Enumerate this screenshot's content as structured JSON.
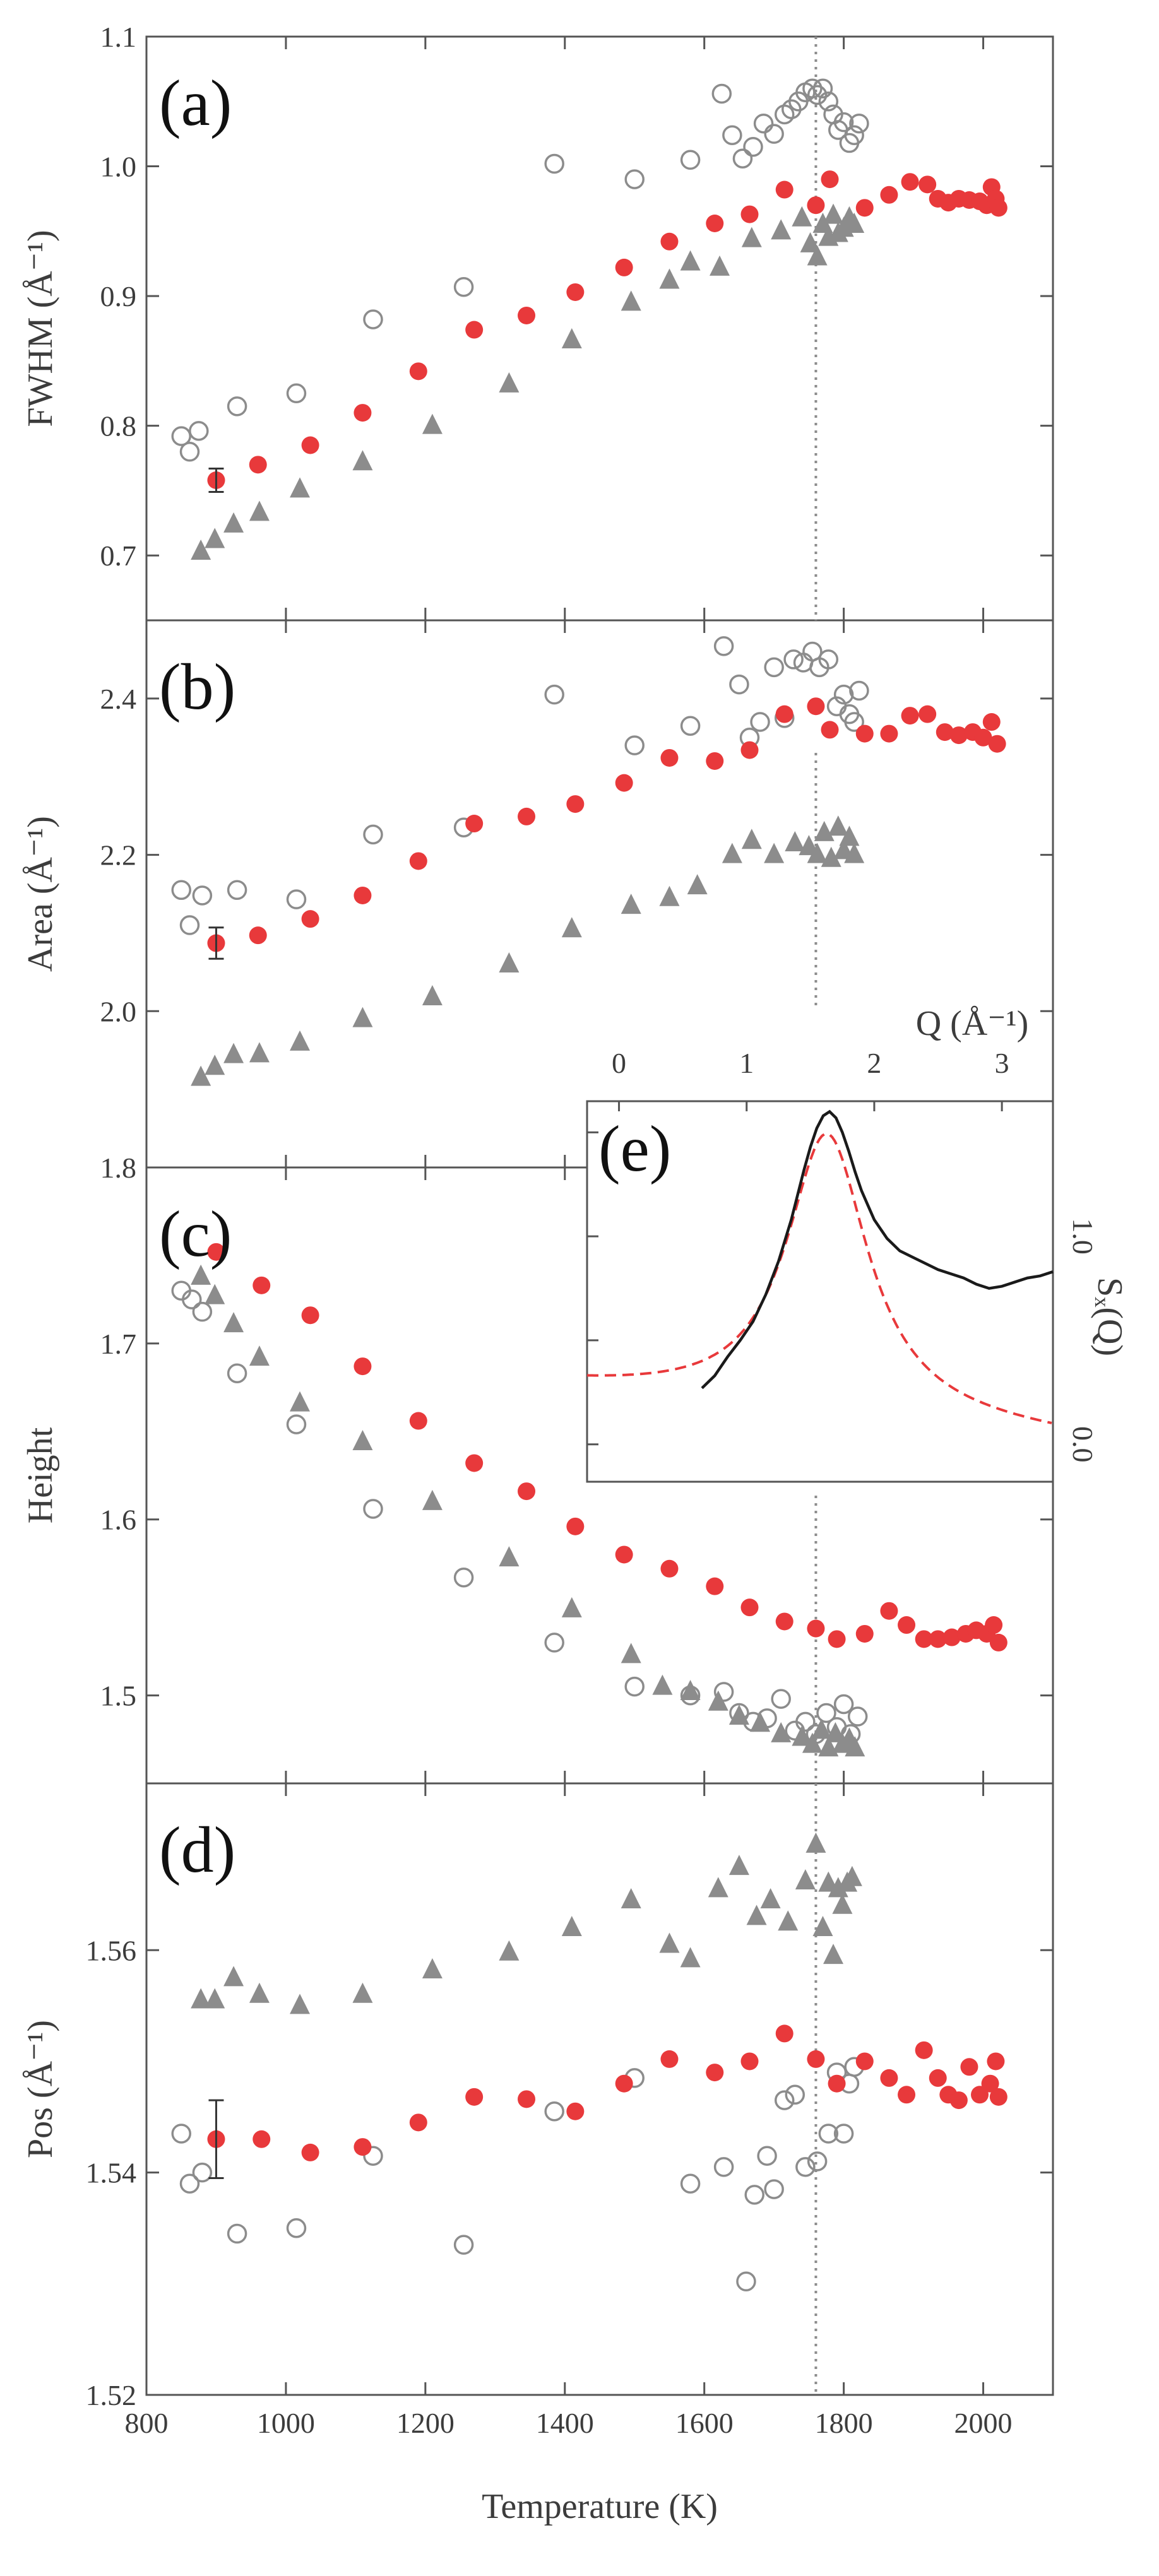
{
  "colors": {
    "red": "#e8393b",
    "gray": "#8c8c8c",
    "frame": "#555555",
    "refline": "#8c8c8c",
    "inset_black": "#1a1a1a"
  },
  "chart_data": [
    {
      "id": "a",
      "type": "scatter",
      "panel_label": "(a)",
      "ylabel": "FWHM (Å⁻¹)",
      "ylim": [
        0.65,
        1.1
      ],
      "xlim": [
        800,
        2100
      ],
      "yticks": [
        "0.7",
        "0.8",
        "0.9",
        "1.0",
        "1.1"
      ],
      "ytick_values": [
        0.7,
        0.8,
        0.9,
        1.0,
        1.1
      ],
      "series": [
        {
          "name": "open circles",
          "marker": "open-circle",
          "x": [
            850,
            862,
            875,
            930,
            1015,
            1125,
            1255,
            1385,
            1500,
            1580,
            1625,
            1640,
            1655,
            1670,
            1685,
            1700,
            1715,
            1725,
            1735,
            1745,
            1755,
            1762,
            1770,
            1778,
            1785,
            1792,
            1800,
            1808,
            1815,
            1822
          ],
          "y": [
            0.792,
            0.78,
            0.796,
            0.815,
            0.825,
            0.882,
            0.907,
            1.002,
            0.99,
            1.005,
            1.056,
            1.024,
            1.006,
            1.015,
            1.033,
            1.025,
            1.04,
            1.044,
            1.05,
            1.057,
            1.06,
            1.055,
            1.06,
            1.05,
            1.04,
            1.028,
            1.034,
            1.018,
            1.024,
            1.033
          ]
        },
        {
          "name": "red filled circles",
          "marker": "filled-circle",
          "x": [
            900,
            960,
            1035,
            1110,
            1190,
            1270,
            1345,
            1415,
            1485,
            1550,
            1615,
            1665,
            1715,
            1760,
            1780,
            1830,
            1865,
            1895,
            1920,
            1935,
            1950,
            1965,
            1980,
            1995,
            2005,
            2012,
            2018,
            2022
          ],
          "y": [
            0.758,
            0.77,
            0.785,
            0.81,
            0.842,
            0.874,
            0.885,
            0.903,
            0.922,
            0.942,
            0.956,
            0.963,
            0.982,
            0.97,
            0.99,
            0.968,
            0.978,
            0.988,
            0.986,
            0.975,
            0.972,
            0.975,
            0.974,
            0.973,
            0.97,
            0.984,
            0.975,
            0.968
          ],
          "error_bar": {
            "x": 900,
            "y": 0.758,
            "err": 0.009
          }
        },
        {
          "name": "gray triangles",
          "marker": "filled-triangle",
          "x": [
            878,
            898,
            925,
            962,
            1020,
            1110,
            1210,
            1320,
            1410,
            1495,
            1550,
            1580,
            1622,
            1668,
            1710,
            1740,
            1752,
            1762,
            1770,
            1778,
            1785,
            1792,
            1800,
            1808,
            1815
          ],
          "y": [
            0.703,
            0.712,
            0.724,
            0.733,
            0.751,
            0.772,
            0.8,
            0.832,
            0.866,
            0.895,
            0.912,
            0.926,
            0.922,
            0.944,
            0.95,
            0.96,
            0.94,
            0.93,
            0.955,
            0.945,
            0.962,
            0.948,
            0.952,
            0.96,
            0.955
          ]
        }
      ]
    },
    {
      "id": "b",
      "type": "scatter",
      "panel_label": "(b)",
      "ylabel": "Area (Å⁻¹)",
      "ylim": [
        1.8,
        2.5
      ],
      "xlim": [
        800,
        2100
      ],
      "yticks": [
        "1.8",
        "2.0",
        "2.2",
        "2.4"
      ],
      "ytick_values": [
        1.8,
        2.0,
        2.2,
        2.4
      ],
      "series": [
        {
          "name": "open circles",
          "marker": "open-circle",
          "x": [
            850,
            862,
            880,
            930,
            1015,
            1125,
            1255,
            1385,
            1500,
            1580,
            1628,
            1650,
            1665,
            1680,
            1700,
            1715,
            1728,
            1742,
            1755,
            1765,
            1778,
            1790,
            1800,
            1808,
            1815,
            1822
          ],
          "y": [
            2.155,
            2.11,
            2.148,
            2.155,
            2.143,
            2.226,
            2.235,
            2.405,
            2.34,
            2.365,
            2.467,
            2.418,
            2.35,
            2.37,
            2.44,
            2.375,
            2.45,
            2.446,
            2.46,
            2.44,
            2.45,
            2.39,
            2.405,
            2.38,
            2.37,
            2.41
          ]
        },
        {
          "name": "red filled circles",
          "marker": "filled-circle",
          "x": [
            900,
            960,
            1035,
            1110,
            1190,
            1270,
            1345,
            1415,
            1485,
            1550,
            1615,
            1665,
            1715,
            1760,
            1780,
            1830,
            1865,
            1895,
            1920,
            1945,
            1965,
            1985,
            2000,
            2012,
            2020
          ],
          "y": [
            2.087,
            2.097,
            2.118,
            2.148,
            2.192,
            2.24,
            2.249,
            2.265,
            2.292,
            2.324,
            2.32,
            2.334,
            2.38,
            2.39,
            2.36,
            2.355,
            2.355,
            2.378,
            2.38,
            2.357,
            2.353,
            2.357,
            2.35,
            2.37,
            2.342
          ],
          "error_bar": {
            "x": 900,
            "y": 2.087,
            "err": 0.02
          }
        },
        {
          "name": "gray triangles",
          "marker": "filled-triangle",
          "x": [
            878,
            898,
            925,
            962,
            1020,
            1110,
            1210,
            1320,
            1410,
            1495,
            1550,
            1590,
            1640,
            1668,
            1700,
            1730,
            1750,
            1762,
            1772,
            1782,
            1792,
            1800,
            1808,
            1815
          ],
          "y": [
            1.915,
            1.929,
            1.944,
            1.945,
            1.96,
            1.99,
            2.018,
            2.06,
            2.105,
            2.135,
            2.145,
            2.16,
            2.2,
            2.218,
            2.2,
            2.215,
            2.21,
            2.2,
            2.228,
            2.195,
            2.235,
            2.205,
            2.222,
            2.2
          ]
        }
      ]
    },
    {
      "id": "c",
      "type": "scatter",
      "panel_label": "(c)",
      "ylabel": "Height",
      "ylim": [
        1.45,
        1.8
      ],
      "xlim": [
        800,
        2100
      ],
      "yticks": [
        "1.5",
        "1.6",
        "1.7"
      ],
      "ytick_values": [
        1.5,
        1.6,
        1.7
      ],
      "series": [
        {
          "name": "open circles",
          "marker": "open-circle",
          "x": [
            850,
            865,
            880,
            930,
            1015,
            1125,
            1255,
            1385,
            1500,
            1580,
            1628,
            1650,
            1670,
            1690,
            1710,
            1730,
            1745,
            1760,
            1775,
            1790,
            1800,
            1810,
            1820
          ],
          "y": [
            1.73,
            1.725,
            1.718,
            1.683,
            1.654,
            1.606,
            1.567,
            1.53,
            1.505,
            1.5,
            1.502,
            1.49,
            1.485,
            1.487,
            1.498,
            1.48,
            1.485,
            1.478,
            1.49,
            1.482,
            1.495,
            1.478,
            1.488
          ]
        },
        {
          "name": "red filled circles",
          "marker": "filled-circle",
          "x": [
            900,
            965,
            1035,
            1110,
            1190,
            1270,
            1345,
            1415,
            1485,
            1550,
            1615,
            1665,
            1715,
            1760,
            1790,
            1830,
            1865,
            1890,
            1915,
            1935,
            1955,
            1975,
            1990,
            2005,
            2015,
            2022
          ],
          "y": [
            1.752,
            1.733,
            1.716,
            1.687,
            1.656,
            1.632,
            1.616,
            1.596,
            1.58,
            1.572,
            1.562,
            1.55,
            1.542,
            1.538,
            1.532,
            1.535,
            1.548,
            1.54,
            1.532,
            1.532,
            1.533,
            1.535,
            1.537,
            1.535,
            1.54,
            1.53
          ]
        },
        {
          "name": "gray triangles",
          "marker": "filled-triangle",
          "x": [
            878,
            898,
            925,
            962,
            1020,
            1110,
            1210,
            1320,
            1410,
            1495,
            1540,
            1580,
            1620,
            1650,
            1680,
            1710,
            1740,
            1755,
            1768,
            1778,
            1788,
            1798,
            1808,
            1816
          ],
          "y": [
            1.738,
            1.727,
            1.711,
            1.692,
            1.666,
            1.644,
            1.61,
            1.578,
            1.549,
            1.523,
            1.505,
            1.502,
            1.496,
            1.488,
            1.484,
            1.478,
            1.476,
            1.472,
            1.48,
            1.47,
            1.478,
            1.472,
            1.475,
            1.47
          ]
        }
      ]
    },
    {
      "id": "d",
      "type": "scatter",
      "panel_label": "(d)",
      "ylabel": "Pos (Å⁻¹)",
      "ylim": [
        1.52,
        1.575
      ],
      "xlim": [
        800,
        2100
      ],
      "yticks": [
        "1.52",
        "1.54",
        "1.56"
      ],
      "ytick_values": [
        1.52,
        1.54,
        1.56
      ],
      "xticks": [
        "800",
        "1000",
        "1200",
        "1400",
        "1600",
        "1800",
        "2000"
      ],
      "xtick_values": [
        800,
        1000,
        1200,
        1400,
        1600,
        1800,
        2000
      ],
      "xlabel": "Temperature (K)",
      "series": [
        {
          "name": "open circles",
          "marker": "open-circle",
          "x": [
            850,
            862,
            880,
            930,
            1015,
            1125,
            1255,
            1385,
            1500,
            1580,
            1628,
            1660,
            1672,
            1690,
            1700,
            1715,
            1730,
            1745,
            1762,
            1778,
            1790,
            1800,
            1808,
            1815
          ],
          "y": [
            1.5435,
            1.539,
            1.54,
            1.5345,
            1.535,
            1.5415,
            1.5335,
            1.5455,
            1.5485,
            1.539,
            1.5405,
            1.5302,
            1.538,
            1.5415,
            1.5385,
            1.5465,
            1.547,
            1.5405,
            1.541,
            1.5435,
            1.549,
            1.5435,
            1.548,
            1.5495
          ]
        },
        {
          "name": "red filled circles",
          "marker": "filled-circle",
          "x": [
            900,
            965,
            1035,
            1110,
            1190,
            1270,
            1345,
            1415,
            1485,
            1550,
            1615,
            1665,
            1715,
            1760,
            1790,
            1830,
            1865,
            1890,
            1915,
            1935,
            1950,
            1965,
            1980,
            1995,
            2010,
            2018,
            2022
          ],
          "y": [
            1.543,
            1.543,
            1.5418,
            1.5423,
            1.5445,
            1.5468,
            1.5466,
            1.5455,
            1.548,
            1.5502,
            1.549,
            1.55,
            1.5525,
            1.5502,
            1.548,
            1.55,
            1.5485,
            1.547,
            1.551,
            1.5485,
            1.547,
            1.5465,
            1.5495,
            1.547,
            1.548,
            1.55,
            1.5468
          ],
          "error_bar": {
            "x": 900,
            "y": 1.543,
            "err": 0.0035
          }
        },
        {
          "name": "gray triangles",
          "marker": "filled-triangle",
          "x": [
            878,
            898,
            925,
            962,
            1020,
            1110,
            1210,
            1320,
            1410,
            1495,
            1550,
            1580,
            1620,
            1650,
            1675,
            1695,
            1720,
            1745,
            1760,
            1770,
            1778,
            1785,
            1792,
            1798,
            1805,
            1812
          ],
          "y": [
            1.5555,
            1.5555,
            1.5575,
            1.556,
            1.555,
            1.556,
            1.5582,
            1.5598,
            1.562,
            1.5645,
            1.5605,
            1.5592,
            1.5655,
            1.5675,
            1.563,
            1.5645,
            1.5625,
            1.5662,
            1.5695,
            1.562,
            1.566,
            1.5595,
            1.5655,
            1.564,
            1.566,
            1.5665
          ]
        }
      ]
    },
    {
      "id": "e",
      "type": "line",
      "panel_label": "(e)",
      "xlabel": "Q (Å⁻¹)",
      "ylabel": "Sₓ(Q)",
      "xlim": [
        -0.25,
        3.4
      ],
      "ylim": [
        -0.18,
        1.65
      ],
      "xticks": [
        "0",
        "1",
        "2",
        "3"
      ],
      "xtick_values": [
        0,
        1,
        2,
        3
      ],
      "yticks": [
        "0.0",
        "1.0"
      ],
      "ytick_values": [
        0.0,
        1.0
      ],
      "minor_yticks": [
        0.0,
        0.5,
        1.0,
        1.5
      ],
      "series": [
        {
          "name": "measured",
          "style": "solid",
          "color": "black",
          "x": [
            0.65,
            0.75,
            0.85,
            0.95,
            1.05,
            1.15,
            1.25,
            1.35,
            1.45,
            1.5,
            1.55,
            1.6,
            1.65,
            1.7,
            1.75,
            1.8,
            1.85,
            1.9,
            1.95,
            2.0,
            2.1,
            2.2,
            2.3,
            2.4,
            2.5,
            2.6,
            2.7,
            2.8,
            2.9,
            3.0,
            3.1,
            3.2,
            3.3,
            3.4
          ],
          "y": [
            0.27,
            0.33,
            0.42,
            0.5,
            0.59,
            0.72,
            0.88,
            1.08,
            1.32,
            1.43,
            1.52,
            1.58,
            1.6,
            1.57,
            1.5,
            1.41,
            1.31,
            1.22,
            1.15,
            1.08,
            0.99,
            0.93,
            0.9,
            0.87,
            0.84,
            0.82,
            0.8,
            0.77,
            0.75,
            0.76,
            0.78,
            0.8,
            0.81,
            0.83
          ]
        },
        {
          "name": "fit",
          "style": "dashed",
          "color": "red",
          "lorentz": {
            "amplitude": 1.34,
            "center": 1.63,
            "hwhm": 0.39,
            "baseline": 0.26,
            "slope": -0.065
          }
        }
      ]
    }
  ],
  "reference_line": {
    "x": 1760,
    "note": "vertical dotted line across panels"
  }
}
